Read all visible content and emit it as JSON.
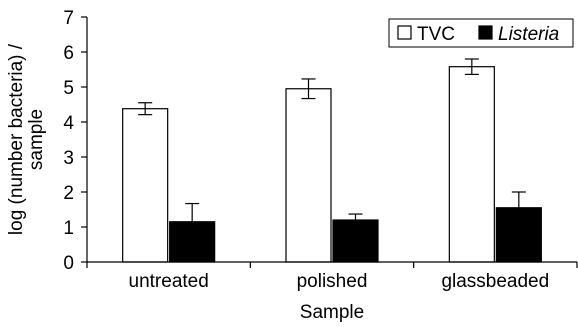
{
  "chart_data": {
    "type": "bar",
    "categories": [
      "untreated",
      "polished",
      "glassbeaded"
    ],
    "series": [
      {
        "name": "TVC",
        "values": [
          4.38,
          4.95,
          5.58
        ],
        "errors": [
          0.17,
          0.28,
          0.22
        ],
        "color": "#ffffff"
      },
      {
        "name": "Listeria",
        "values": [
          1.15,
          1.2,
          1.55
        ],
        "errors": [
          0.52,
          0.17,
          0.45
        ],
        "color": "#000000"
      }
    ],
    "title": "",
    "xlabel": "Sample",
    "ylabel_lines": [
      "log (number bacteria) /",
      "sample"
    ],
    "ylim": [
      0,
      7
    ],
    "yticks": [
      0,
      1,
      2,
      3,
      4,
      5,
      6,
      7
    ],
    "grid": false,
    "legend_position": "top-right"
  }
}
